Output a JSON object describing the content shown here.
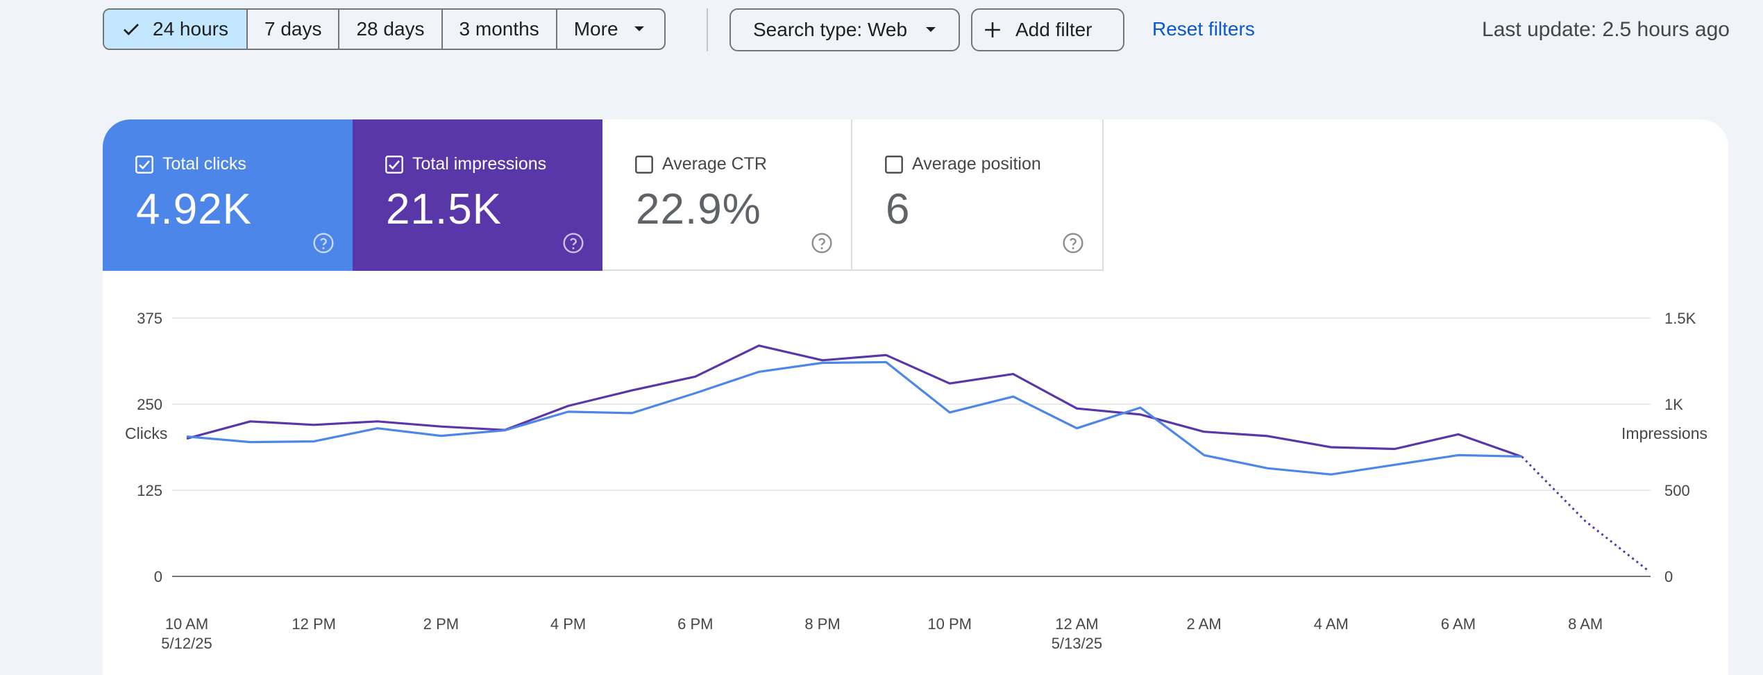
{
  "filters": {
    "ranges": [
      {
        "label": "24 hours",
        "selected": true
      },
      {
        "label": "7 days",
        "selected": false
      },
      {
        "label": "28 days",
        "selected": false
      },
      {
        "label": "3 months",
        "selected": false
      },
      {
        "label": "More",
        "selected": false,
        "has_dropdown": true
      }
    ],
    "search_type_label": "Search type: Web",
    "add_filter_label": "Add filter",
    "reset_label": "Reset filters",
    "last_update": "Last update: 2.5 hours ago"
  },
  "metrics": [
    {
      "label": "Total clicks",
      "value": "4.92K",
      "checked": true,
      "color": "#4c86e8"
    },
    {
      "label": "Total impressions",
      "value": "21.5K",
      "checked": true,
      "color": "#5a37a9"
    },
    {
      "label": "Average CTR",
      "value": "22.9%",
      "checked": false
    },
    {
      "label": "Average position",
      "value": "6",
      "checked": false
    }
  ],
  "chart_data": {
    "type": "line",
    "left_axis_label": "Clicks",
    "right_axis_label": "Impressions",
    "left_ticks": [
      "375",
      "250",
      "125",
      "0"
    ],
    "right_ticks": [
      "1.5K",
      "1K",
      "500",
      "0"
    ],
    "left_ylim": [
      0,
      375
    ],
    "right_ylim": [
      0,
      1500
    ],
    "x_ticks": [
      {
        "label": "10 AM",
        "sub": "5/12/25"
      },
      {
        "label": "12 PM",
        "sub": ""
      },
      {
        "label": "2 PM",
        "sub": ""
      },
      {
        "label": "4 PM",
        "sub": ""
      },
      {
        "label": "6 PM",
        "sub": ""
      },
      {
        "label": "8 PM",
        "sub": ""
      },
      {
        "label": "10 PM",
        "sub": ""
      },
      {
        "label": "12 AM",
        "sub": "5/13/25"
      },
      {
        "label": "2 AM",
        "sub": ""
      },
      {
        "label": "4 AM",
        "sub": ""
      },
      {
        "label": "6 AM",
        "sub": ""
      },
      {
        "label": "8 AM",
        "sub": ""
      }
    ],
    "x_hours": [
      "10 AM",
      "11 AM",
      "12 PM",
      "1 PM",
      "2 PM",
      "3 PM",
      "4 PM",
      "5 PM",
      "6 PM",
      "7 PM",
      "8 PM",
      "9 PM",
      "10 PM",
      "11 PM",
      "12 AM",
      "1 AM",
      "2 AM",
      "3 AM",
      "4 AM",
      "5 AM",
      "6 AM",
      "7 AM",
      "8 AM",
      "9 AM"
    ],
    "series": [
      {
        "name": "Total clicks",
        "axis": "left",
        "color": "#4c86e8",
        "values": [
          203,
          195,
          196,
          215,
          204,
          212,
          239,
          237,
          266,
          297,
          310,
          311,
          238,
          261,
          215,
          245,
          176,
          157,
          148,
          162,
          176,
          174,
          null,
          null
        ]
      },
      {
        "name": "Total impressions",
        "axis": "right",
        "color": "#5a37a9",
        "values": [
          800,
          900,
          880,
          900,
          870,
          850,
          990,
          1080,
          1160,
          1340,
          1255,
          1285,
          1120,
          1175,
          975,
          940,
          840,
          815,
          750,
          740,
          825,
          695,
          320,
          30
        ],
        "dotted_from_index": 21
      }
    ]
  }
}
